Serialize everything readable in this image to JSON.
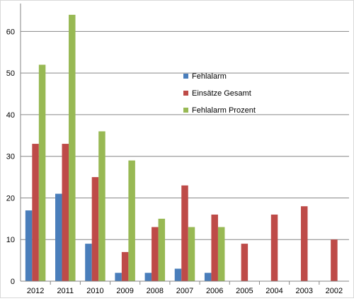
{
  "chart_data": {
    "type": "bar",
    "categories": [
      "2012",
      "2011",
      "2010",
      "2009",
      "2008",
      "2007",
      "2006",
      "2005",
      "2004",
      "2003",
      "2002"
    ],
    "series": [
      {
        "name": "Fehlalarm",
        "color": "#4a7ebb",
        "values": [
          17,
          21,
          9,
          2,
          2,
          3,
          2,
          0,
          0,
          0,
          0
        ]
      },
      {
        "name": "Einsätze Gesamt",
        "color": "#be4b48",
        "values": [
          33,
          33,
          25,
          7,
          13,
          23,
          16,
          9,
          16,
          18,
          10
        ]
      },
      {
        "name": "Fehlalarm Prozent",
        "color": "#98b954",
        "values": [
          52,
          64,
          36,
          29,
          15,
          13,
          13,
          0,
          0,
          0,
          0
        ]
      }
    ],
    "ylim": [
      0,
      65
    ],
    "yticks": [
      0,
      10,
      20,
      30,
      40,
      50,
      60
    ],
    "grid": true,
    "legend": "center-right",
    "title": "",
    "xlabel": "",
    "ylabel": ""
  }
}
